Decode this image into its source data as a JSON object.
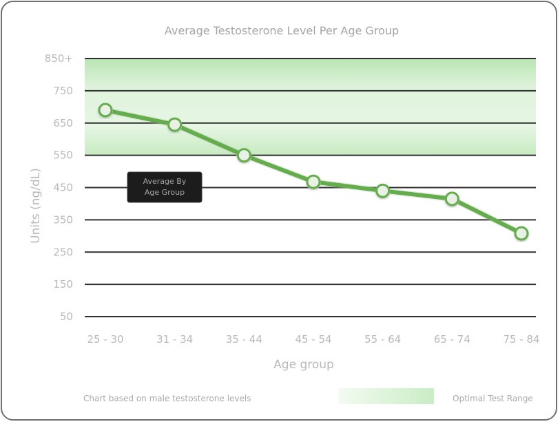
{
  "chart_data": {
    "type": "line",
    "title": "Average Testosterone Level Per Age Group",
    "xlabel": "Age group",
    "ylabel": "Units (ng/dL)",
    "categories": [
      "25 - 30",
      "31 - 34",
      "35 - 44",
      "45 - 54",
      "55 - 64",
      "65 - 74",
      "75 - 84"
    ],
    "series": [
      {
        "name": "Average By Age Group",
        "values": [
          690,
          645,
          550,
          468,
          440,
          415,
          308
        ]
      }
    ],
    "yticks": [
      {
        "value": 50,
        "label": "50"
      },
      {
        "value": 150,
        "label": "150"
      },
      {
        "value": 250,
        "label": "250"
      },
      {
        "value": 350,
        "label": "350"
      },
      {
        "value": 450,
        "label": "450"
      },
      {
        "value": 550,
        "label": "550"
      },
      {
        "value": 650,
        "label": "650"
      },
      {
        "value": 750,
        "label": "750"
      },
      {
        "value": 850,
        "label": "850+"
      }
    ],
    "ylim": [
      50,
      850
    ],
    "grid": true,
    "optimal_range": {
      "label": "Optimal Test Range",
      "min": 550,
      "max": 850,
      "color": "#d8f0d4"
    },
    "line_color": "#64ad4c",
    "marker_fill": "#e9f1e7",
    "grid_color": "#2f2f2f",
    "tooltip": {
      "label": "Average By Age Group"
    }
  },
  "footer": {
    "note": "Chart based on male testosterone levels"
  }
}
